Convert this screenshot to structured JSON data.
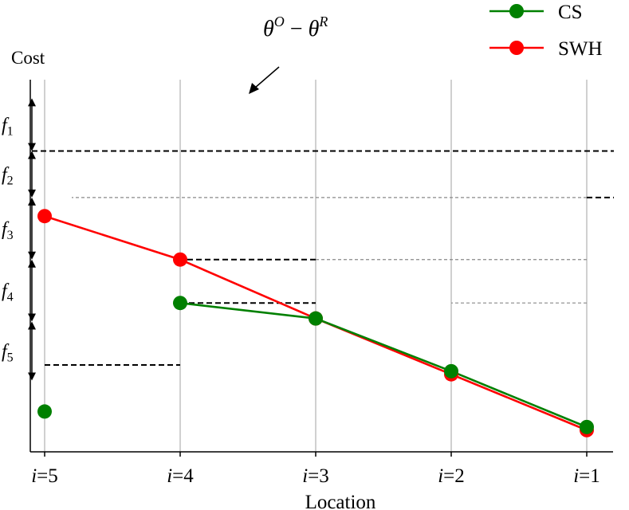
{
  "chart_data": {
    "type": "line",
    "xlabel": "Location",
    "ylabel": "Cost",
    "categories": [
      "i=5",
      "i=4",
      "i=3",
      "i=2",
      "i=1"
    ],
    "tick_labels": [
      {
        "var": "i",
        "eq": "=",
        "num": "5"
      },
      {
        "var": "i",
        "eq": "=",
        "num": "4"
      },
      {
        "var": "i",
        "eq": "=",
        "num": "3"
      },
      {
        "var": "i",
        "eq": "=",
        "num": "2"
      },
      {
        "var": "i",
        "eq": "=",
        "num": "1"
      }
    ],
    "ylim": [
      0,
      10
    ],
    "grid": "vertical",
    "legend_position": "top-right",
    "series": [
      {
        "name": "CS",
        "color": "#008000",
        "values": [
          0.3,
          3.8,
          3.3,
          1.6,
          -0.2
        ],
        "connect_from_index": 1
      },
      {
        "name": "SWH",
        "color": "#ff0000",
        "values": [
          6.6,
          5.2,
          3.3,
          1.5,
          -0.3
        ],
        "connect_from_index": 0
      }
    ],
    "thresholds": [
      {
        "level": 8.7,
        "bold_from": 4,
        "bold_to": 3.8,
        "thin_from": 4,
        "thin_to": 4
      },
      {
        "level": 7.2,
        "bold_from": 0.2,
        "bold_to": 0,
        "thin_from": 4,
        "thin_to": 0.2
      },
      {
        "level": 5.2,
        "bold_from": 2,
        "bold_to": 1,
        "thin_from": 4,
        "thin_to": 2
      },
      {
        "level": 3.8,
        "bold_from": 1,
        "bold_to": 2,
        "thin_from": 4,
        "thin_to": 3
      },
      {
        "level": 1.8,
        "bold_from": 0,
        "bold_to": 1,
        "thin_from": 4,
        "thin_to": 4
      }
    ],
    "brackets": [
      {
        "sub": "1",
        "from": 10.4,
        "to": 8.7
      },
      {
        "sub": "2",
        "from": 8.7,
        "to": 7.2
      },
      {
        "sub": "3",
        "from": 7.2,
        "to": 5.2
      },
      {
        "sub": "4",
        "from": 5.2,
        "to": 3.2
      },
      {
        "sub": "5",
        "from": 3.2,
        "to": 1.3
      }
    ],
    "annotation": {
      "text": "θ^O − θ^R"
    },
    "annotation_parts": {
      "base1": "θ",
      "sup1": "O",
      "minus": "−",
      "base2": "θ",
      "sup2": "R"
    }
  },
  "colors": {
    "grid": "#b0b0b0",
    "axis": "#000000",
    "thin_dash": "#888888",
    "bold_dash": "#000000"
  }
}
